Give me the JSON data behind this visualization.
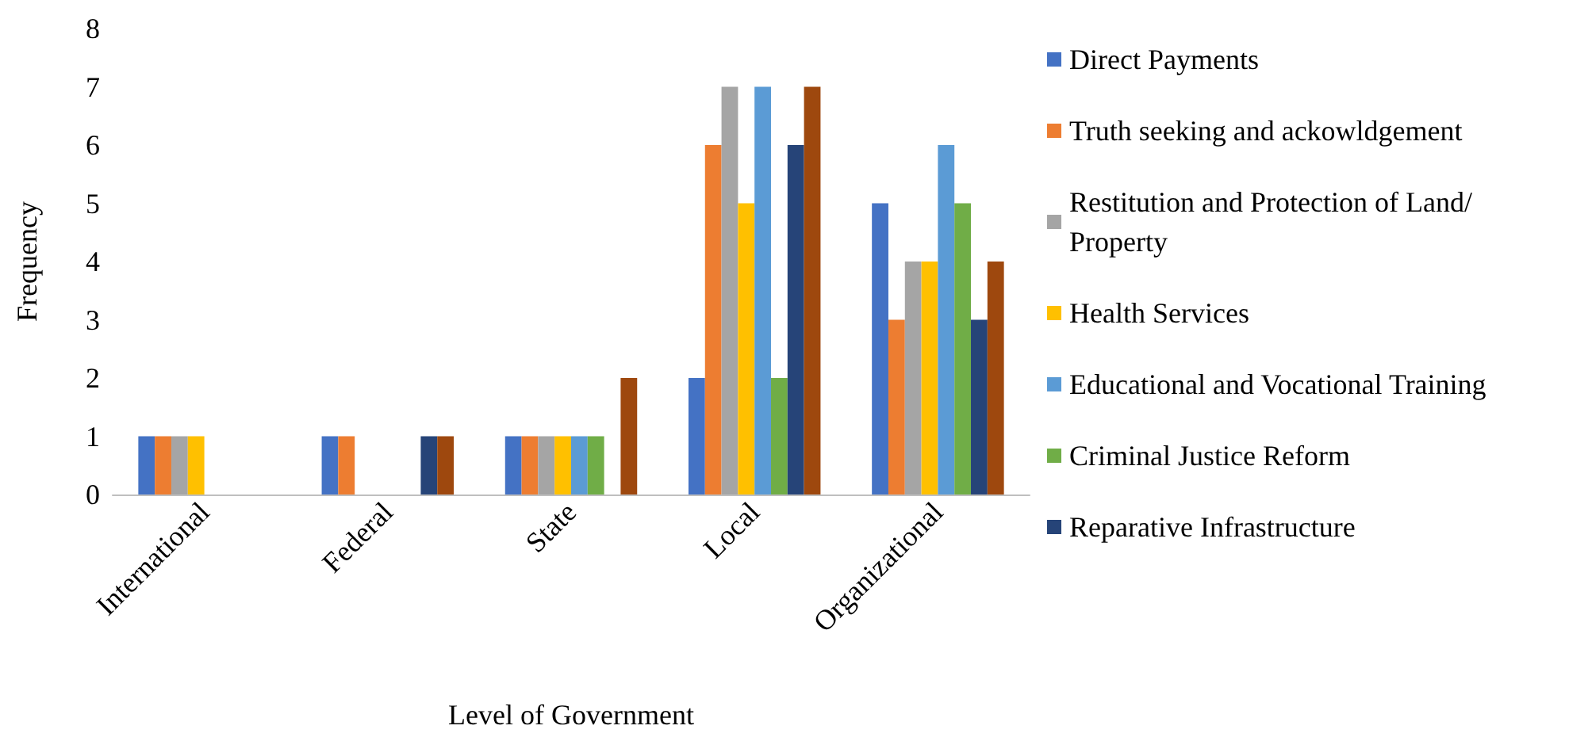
{
  "chart_data": {
    "type": "bar",
    "xlabel": "Level of Government",
    "ylabel": "Frequency",
    "categories": [
      "International",
      "Federal",
      "State",
      "Local",
      "Organizational"
    ],
    "ylim": [
      0,
      8
    ],
    "yticks": [
      0,
      1,
      2,
      3,
      4,
      5,
      6,
      7,
      8
    ],
    "grid": false,
    "legend": "right",
    "series": [
      {
        "name": "Direct Payments",
        "color": "#4472c4",
        "values": [
          1,
          1,
          1,
          2,
          5
        ]
      },
      {
        "name": "Truth seeking and ackowldgement",
        "color": "#ed7d31",
        "values": [
          1,
          1,
          1,
          6,
          3
        ]
      },
      {
        "name": "Restitution and Protection of Land/Property",
        "color": "#a5a5a5",
        "values": [
          1,
          0,
          1,
          7,
          4
        ]
      },
      {
        "name": "Health Services",
        "color": "#ffc000",
        "values": [
          1,
          0,
          1,
          5,
          4
        ]
      },
      {
        "name": "Educational and Vocational Training",
        "color": "#5b9bd5",
        "values": [
          0,
          0,
          1,
          7,
          6
        ]
      },
      {
        "name": "Criminal Justice Reform",
        "color": "#70ad47",
        "values": [
          0,
          0,
          1,
          2,
          5
        ]
      },
      {
        "name": "Reparative Infrastructure",
        "color": "#264478",
        "values": [
          0,
          1,
          0,
          6,
          3
        ]
      },
      {
        "color": "#9e480e",
        "values": [
          0,
          1,
          2,
          7,
          4
        ]
      }
    ]
  }
}
